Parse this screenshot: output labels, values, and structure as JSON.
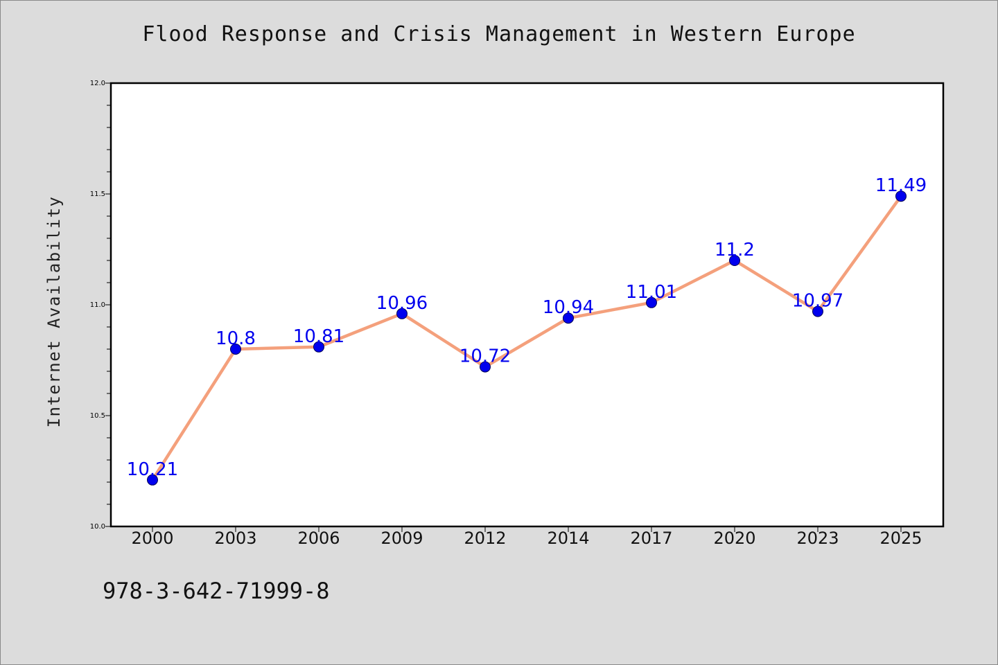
{
  "chart_data": {
    "type": "line",
    "title": "Flood Response and Crisis Management in Western Europe",
    "ylabel": "Internet Availability",
    "xlabel": "",
    "categories": [
      "2000",
      "2003",
      "2006",
      "2009",
      "2012",
      "2014",
      "2017",
      "2020",
      "2023",
      "2025"
    ],
    "series": [
      {
        "values": [
          10.21,
          10.8,
          10.81,
          10.96,
          10.72,
          10.94,
          11.01,
          11.2,
          10.97,
          11.49
        ],
        "labels": [
          "10.21",
          "10.8",
          "10.81",
          "10.96",
          "10.72",
          "10.94",
          "11.01",
          "11.2",
          "10.97",
          "11.49"
        ]
      }
    ],
    "ylim": [
      10.0,
      12.0
    ],
    "yticks": [
      "10.0",
      "10.5",
      "11.0",
      "11.5",
      "12.0"
    ],
    "grid": false,
    "colors": {
      "line": "#f4a07c",
      "marker": "#0000ee",
      "label": "#0000ee",
      "background": "#dcdcdc",
      "plot_background": "#ffffff"
    }
  },
  "footer": {
    "isbn": "978-3-642-71999-8"
  }
}
